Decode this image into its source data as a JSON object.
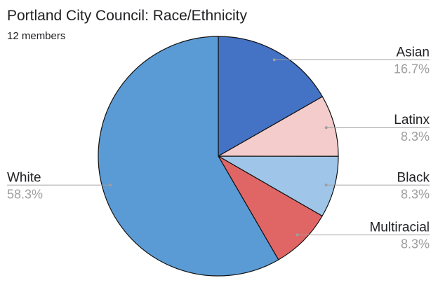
{
  "chart_data": {
    "type": "pie",
    "title": "Portland City Council: Race/Ethnicity",
    "subtitle": "12 members",
    "slices": [
      {
        "label": "Asian",
        "value": 16.7,
        "display": "16.7%",
        "color": "#4472c4"
      },
      {
        "label": "Latinx",
        "value": 8.3,
        "display": "8.3%",
        "color": "#f4cccc"
      },
      {
        "label": "Black",
        "value": 8.3,
        "display": "8.3%",
        "color": "#9fc5e8"
      },
      {
        "label": "Multiracial",
        "value": 8.3,
        "display": "8.3%",
        "color": "#e06666"
      },
      {
        "label": "White",
        "value": 58.3,
        "display": "58.3%",
        "color": "#5b9bd5"
      }
    ],
    "start_angle": "12 o'clock",
    "direction": "clockwise",
    "legend": "none",
    "labels": "outside with leader lines"
  }
}
